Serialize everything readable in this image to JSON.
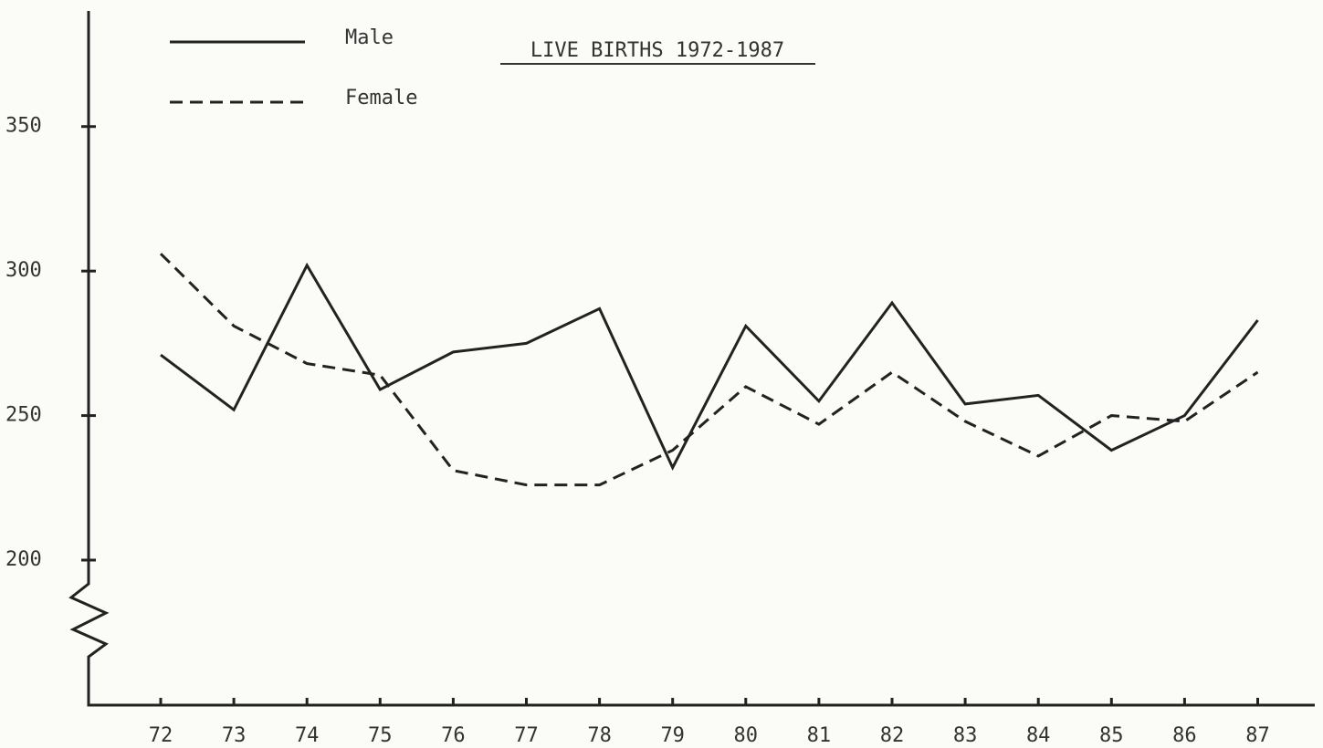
{
  "chart_data": {
    "type": "line",
    "title": "LIVE BIRTHS 1972-1987",
    "categories": [
      "72",
      "73",
      "74",
      "75",
      "76",
      "77",
      "78",
      "79",
      "80",
      "81",
      "82",
      "83",
      "84",
      "85",
      "86",
      "87"
    ],
    "series": [
      {
        "name": "Male",
        "color": "#222222",
        "style": "solid",
        "values": [
          271,
          252,
          302,
          259,
          272,
          275,
          287,
          232,
          281,
          255,
          289,
          254,
          257,
          238,
          250,
          283
        ]
      },
      {
        "name": "Female",
        "color": "#222222",
        "style": "dashed",
        "values": [
          306,
          281,
          268,
          264,
          231,
          226,
          226,
          238,
          260,
          247,
          265,
          248,
          236,
          250,
          248,
          265
        ]
      }
    ],
    "ylim": [
      200,
      390
    ],
    "yticks": [
      200,
      250,
      300,
      350
    ],
    "grid": false
  }
}
